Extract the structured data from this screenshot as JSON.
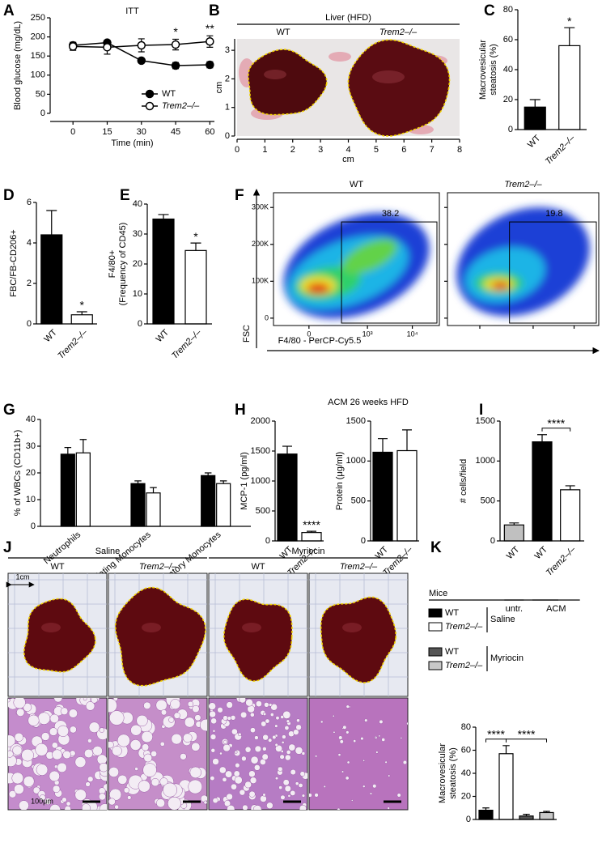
{
  "chart_data": [
    {
      "panel": "A",
      "type": "line",
      "title": "ITT",
      "xlabel": "Time (min)",
      "ylabel": [
        "Blood glucose (mg/dL)"
      ],
      "x": [
        0,
        15,
        30,
        45,
        60
      ],
      "xlim": [
        -10,
        62
      ],
      "xticks": [
        0,
        15,
        30,
        45,
        60
      ],
      "ylim": [
        0,
        250
      ],
      "yticks": [
        0,
        50,
        100,
        150,
        200,
        250
      ],
      "legend": "lower right",
      "series": [
        {
          "name": "WT",
          "color": "#000000",
          "marker": "filled",
          "values": [
            178,
            185,
            138,
            125,
            127
          ],
          "errors": [
            8,
            6,
            4,
            8,
            8
          ]
        },
        {
          "name": "Trem2–/–",
          "color": "#000000",
          "marker": "open",
          "values": [
            175,
            173,
            178,
            180,
            188
          ],
          "errors": [
            10,
            18,
            17,
            14,
            15
          ]
        }
      ],
      "annotations": [
        "*",
        "**"
      ]
    },
    {
      "panel": "B",
      "type": "photo",
      "title": "Liver (HFD)",
      "labels": [
        "WT",
        "Trem2–/–"
      ],
      "xlabel": "cm",
      "ylabel": [
        "cm"
      ],
      "xlim": [
        0,
        8
      ],
      "xticks": [
        0,
        1,
        2,
        3,
        4,
        5,
        6,
        7,
        8
      ],
      "ylim": [
        0,
        3.4
      ],
      "yticks": [
        0,
        1,
        2,
        3
      ]
    },
    {
      "panel": "C",
      "type": "bar",
      "ylabel": [
        "Macrovesicular",
        "steatosis (%)"
      ],
      "categories": [
        "WT",
        "Trem2–/–"
      ],
      "values": [
        15,
        56
      ],
      "errors": [
        5,
        12
      ],
      "colors": [
        "#000000",
        "#ffffff"
      ],
      "ylim": [
        0,
        80
      ],
      "yticks": [
        0,
        20,
        40,
        60,
        80
      ],
      "annotations": [
        "*"
      ]
    },
    {
      "panel": "D",
      "type": "bar",
      "ylabel": [
        "FBC/FB-CD206+"
      ],
      "categories": [
        "WT",
        "Trem2–/–"
      ],
      "values": [
        4.4,
        0.45
      ],
      "errors": [
        1.2,
        0.15
      ],
      "colors": [
        "#000000",
        "#ffffff"
      ],
      "ylim": [
        0,
        6
      ],
      "yticks": [
        0,
        2,
        4,
        6
      ],
      "annotations": [
        "*"
      ]
    },
    {
      "panel": "E",
      "type": "bar",
      "ylabel": [
        "F4/80+",
        "(Frequency of CD45)"
      ],
      "categories": [
        "WT",
        "Trem2–/–"
      ],
      "values": [
        35,
        24.5
      ],
      "errors": [
        1.5,
        2.5
      ],
      "colors": [
        "#000000",
        "#ffffff"
      ],
      "ylim": [
        0,
        40
      ],
      "yticks": [
        0,
        10,
        20,
        30,
        40
      ],
      "annotations": [
        "*"
      ]
    },
    {
      "panel": "F",
      "type": "density",
      "titles": [
        "WT",
        "Trem2–/–"
      ],
      "gates": [
        38.2,
        19.8
      ],
      "ylabel": [
        "FSC"
      ],
      "xlabel": "F4/80 - PerCP-Cy5.5",
      "ylim": [
        -20000,
        340000
      ],
      "yticks": [
        0,
        {
          "value": 100000,
          "label": "100K"
        },
        {
          "value": 200000,
          "label": "200K"
        },
        {
          "value": 300000,
          "label": "300K"
        }
      ],
      "xscale": "biexponential",
      "xlim": [
        -300,
        40000
      ],
      "xticks": [
        0,
        {
          "value": 1000,
          "label": "10³"
        },
        {
          "value": 10000,
          "label": "10⁴"
        }
      ]
    },
    {
      "panel": "G",
      "type": "bar",
      "ylabel": [
        "% of WBCs (CD11b+)"
      ],
      "categories": [
        "Neutrophils",
        "Circulating Monocytes",
        "Inflammatory Monocytes"
      ],
      "series": [
        {
          "color": "#000000",
          "values": [
            27,
            16,
            19
          ],
          "errors": [
            2.5,
            1,
            1
          ]
        },
        {
          "color": "#ffffff",
          "values": [
            27.5,
            12.5,
            16
          ],
          "errors": [
            5,
            2,
            1
          ]
        }
      ],
      "ylim": [
        0,
        40
      ],
      "yticks": [
        0,
        10,
        20,
        30,
        40
      ]
    },
    {
      "panel": "H",
      "type": "bar",
      "title": "ACM 26 weeks HFD",
      "ylabel": [
        "MCP-1 (pg/ml)"
      ],
      "categories": [
        "WT",
        "Trem2–/–"
      ],
      "values": [
        1450,
        140
      ],
      "errors": [
        130,
        20
      ],
      "colors": [
        "#000000",
        "#ffffff"
      ],
      "ylim": [
        0,
        2000
      ],
      "yticks": [
        0,
        500,
        1000,
        1500,
        2000
      ],
      "annotations": [
        "****"
      ]
    },
    {
      "type": "bar",
      "ylabel": [
        "Protein (μg/ml)"
      ],
      "categories": [
        "WT",
        "Trem2–/–"
      ],
      "values": [
        1110,
        1130
      ],
      "errors": [
        170,
        260
      ],
      "colors": [
        "#000000",
        "#ffffff"
      ],
      "ylim": [
        0,
        1500
      ],
      "yticks": [
        0,
        500,
        1000,
        1500
      ]
    },
    {
      "panel": "I",
      "type": "bar",
      "ylabel": [
        "# cells/field"
      ],
      "categories": [
        "WT",
        "WT",
        "Trem2–/–"
      ],
      "groups": [
        "untr.",
        "ACM"
      ],
      "values": [
        200,
        1240,
        640
      ],
      "errors": [
        25,
        90,
        50
      ],
      "colors": [
        "#c0c0c0",
        "#000000",
        "#ffffff"
      ],
      "ylim": [
        0,
        1500
      ],
      "yticks": [
        0,
        500,
        1000,
        1500
      ],
      "annotations": [
        "****"
      ]
    },
    {
      "panel": "K",
      "type": "bar",
      "ylabel": [
        "Macrovesicular",
        "steatosis (%)"
      ],
      "values": [
        8,
        57,
        3,
        6
      ],
      "errors": [
        2,
        7,
        1.5,
        1
      ],
      "colors": [
        "#000000",
        "#ffffff",
        "#555555",
        "#c8c8c8"
      ],
      "ylim": [
        0,
        80
      ],
      "yticks": [
        0,
        20,
        40,
        60,
        80
      ],
      "annotations": [
        "****",
        "****"
      ],
      "legend": {
        "title": "Mice",
        "groups": [
          {
            "label": "Saline",
            "items": [
              {
                "name": "WT",
                "color": "#000000"
              },
              {
                "name": "Trem2–/–",
                "color": "#ffffff"
              }
            ]
          },
          {
            "label": "Myriocin",
            "items": [
              {
                "name": "WT",
                "color": "#555555"
              },
              {
                "name": "Trem2–/–",
                "color": "#c8c8c8"
              }
            ]
          }
        ]
      }
    }
  ],
  "panel_j": {
    "panel": "J",
    "treatments": [
      "Saline",
      "Myriocin"
    ],
    "genotypes": [
      "WT",
      "Trem2–/–",
      "WT",
      "Trem2–/–"
    ],
    "scale_photo": "1cm",
    "scale_histology": "100μm"
  }
}
